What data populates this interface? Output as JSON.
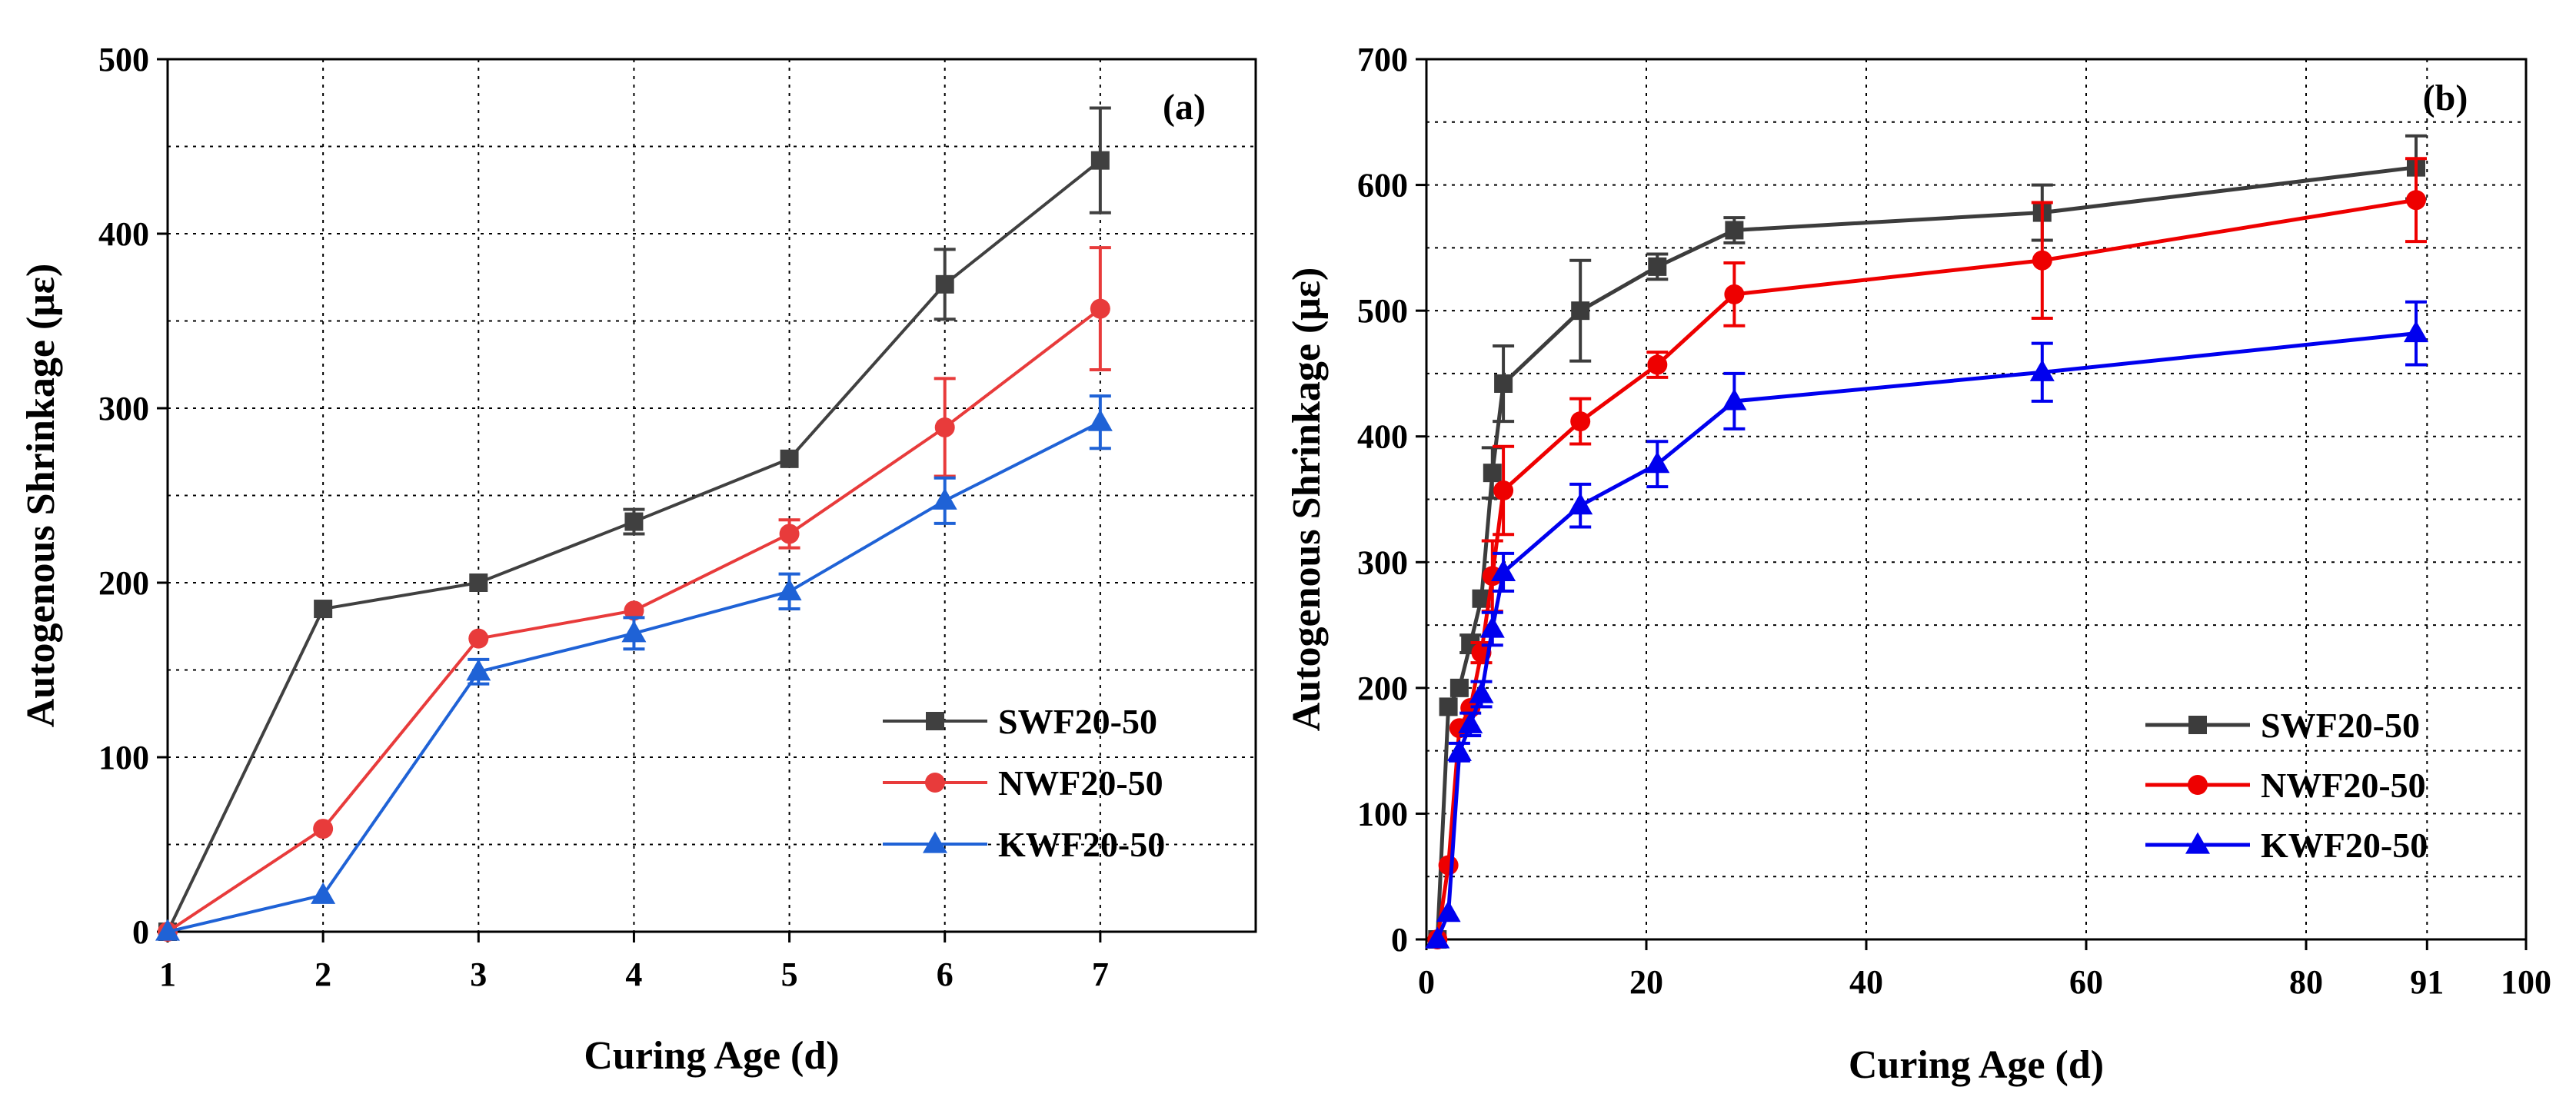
{
  "chart_data": [
    {
      "type": "line",
      "panel_label": "(a)",
      "xlabel": "Curing Age (d)",
      "ylabel": "Autogenous Shrinkage (με)",
      "xlim": [
        1,
        8
      ],
      "ylim": [
        0,
        500
      ],
      "xticks": [
        1,
        2,
        3,
        4,
        5,
        6,
        7
      ],
      "yticks": [
        0,
        100,
        200,
        300,
        400,
        500
      ],
      "grid": true,
      "legend_position": "bottom-right",
      "series": [
        {
          "name": "SWF20-50",
          "color": "#404040",
          "marker": "square",
          "x": [
            1,
            2,
            3,
            4,
            5,
            6,
            7
          ],
          "values": [
            0,
            185,
            200,
            235,
            271,
            371,
            442
          ],
          "errors": [
            0,
            0,
            0,
            7,
            0,
            20,
            30
          ]
        },
        {
          "name": "NWF20-50",
          "color": "#e83b3b",
          "marker": "circle",
          "x": [
            1,
            2,
            3,
            4,
            5,
            6,
            7
          ],
          "values": [
            0,
            59,
            168,
            184,
            228,
            289,
            357
          ],
          "errors": [
            0,
            0,
            0,
            0,
            8,
            28,
            35
          ]
        },
        {
          "name": "KWF20-50",
          "color": "#1f62d6",
          "marker": "triangle",
          "x": [
            1,
            2,
            3,
            4,
            5,
            6,
            7
          ],
          "values": [
            0,
            21,
            149,
            171,
            195,
            247,
            292
          ],
          "errors": [
            0,
            0,
            7,
            9,
            10,
            13,
            15
          ]
        }
      ]
    },
    {
      "type": "line",
      "panel_label": "(b)",
      "xlabel": "Curing Age (d)",
      "ylabel": "Autogenous Shrinkage (με)",
      "xlim": [
        0,
        100
      ],
      "ylim": [
        0,
        700
      ],
      "xticks": [
        0,
        20,
        40,
        60,
        80,
        91,
        100
      ],
      "yticks": [
        0,
        100,
        200,
        300,
        400,
        500,
        600,
        700
      ],
      "grid": true,
      "legend_position": "bottom-right",
      "series": [
        {
          "name": "SWF20-50",
          "color": "#3c3c3c",
          "marker": "square",
          "x": [
            1,
            2,
            3,
            4,
            5,
            6,
            7,
            14,
            21,
            28,
            56,
            90
          ],
          "values": [
            0,
            185,
            200,
            235,
            271,
            371,
            442,
            500,
            535,
            564,
            578,
            614
          ],
          "errors": [
            0,
            0,
            0,
            7,
            0,
            20,
            30,
            40,
            10,
            10,
            22,
            25
          ]
        },
        {
          "name": "NWF20-50",
          "color": "#ee0000",
          "marker": "circle",
          "x": [
            1,
            2,
            3,
            4,
            5,
            6,
            7,
            14,
            21,
            28,
            56,
            90
          ],
          "values": [
            0,
            59,
            168,
            184,
            228,
            289,
            357,
            412,
            457,
            513,
            540,
            588
          ],
          "errors": [
            0,
            0,
            0,
            0,
            8,
            28,
            35,
            18,
            10,
            25,
            46,
            33
          ]
        },
        {
          "name": "KWF20-50",
          "color": "#0000ee",
          "marker": "triangle",
          "x": [
            1,
            2,
            3,
            4,
            5,
            6,
            7,
            14,
            21,
            28,
            56,
            90
          ],
          "values": [
            0,
            21,
            149,
            171,
            195,
            247,
            292,
            345,
            378,
            428,
            451,
            482
          ],
          "errors": [
            0,
            0,
            7,
            9,
            10,
            13,
            15,
            17,
            18,
            22,
            23,
            25
          ]
        }
      ]
    }
  ]
}
